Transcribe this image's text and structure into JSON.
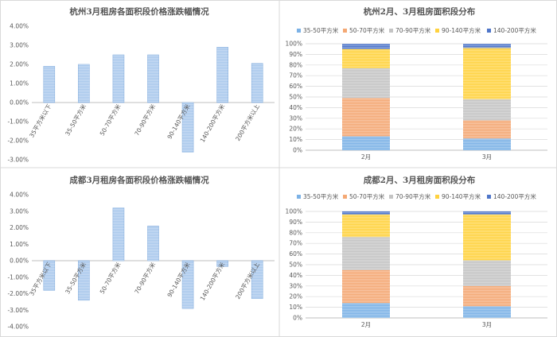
{
  "colors": {
    "bar_fill": "#a9c8ec",
    "bar_stroke": "#7ea9dc",
    "seg_35_50": "#7cb2e6",
    "seg_50_70": "#f4a874",
    "seg_70_90": "#c4c4c4",
    "seg_90_140": "#ffd23f",
    "seg_140_200": "#4f76c9",
    "grid": "#d9d9d9",
    "axis": "#bfbfbf",
    "panel_border": "#d9d9d9"
  },
  "chart_data": [
    {
      "type": "bar",
      "title": "杭州3月租房各面积段价格涨跌幅情况",
      "categories": [
        "35平方米以下",
        "35-50平方米",
        "50-70平方米",
        "70-90平方米",
        "90-140平方米",
        "140-200平方米",
        "200平方米以上"
      ],
      "values": [
        1.9,
        2.0,
        2.5,
        2.5,
        -2.6,
        2.9,
        2.05
      ],
      "ylim": [
        -3,
        4
      ],
      "yticks": [
        "4.00%",
        "3.00%",
        "2.00%",
        "1.00%",
        "0.00%",
        "-1.00%",
        "-2.00%",
        "-3.00%"
      ],
      "grid": false
    },
    {
      "type": "bar",
      "stacked": true,
      "percent": true,
      "title": "杭州2月、3月租房面积段分布",
      "categories": [
        "2月",
        "3月"
      ],
      "legend": "top",
      "series": [
        {
          "name": "35-50平方米",
          "values": [
            13,
            11
          ]
        },
        {
          "name": "50-70平方米",
          "values": [
            36,
            17
          ]
        },
        {
          "name": "70-90平方米",
          "values": [
            28,
            20
          ]
        },
        {
          "name": "90-140平方米",
          "values": [
            18,
            48
          ]
        },
        {
          "name": "140-200平方米",
          "values": [
            5,
            4
          ]
        }
      ],
      "ylim": [
        0,
        100
      ],
      "yticks": [
        "100%",
        "90%",
        "80%",
        "70%",
        "60%",
        "50%",
        "40%",
        "30%",
        "20%",
        "10%",
        "0%"
      ],
      "grid": true
    },
    {
      "type": "bar",
      "title": "成都3月租房各面积段价格涨跌幅情况",
      "categories": [
        "35平方米以下",
        "35-50平方米",
        "50-70平方米",
        "70-90平方米",
        "90-140平方米",
        "140-200平方米",
        "200平方米以上"
      ],
      "values": [
        -1.8,
        -2.4,
        3.2,
        2.1,
        -2.9,
        -0.35,
        -2.3
      ],
      "ylim": [
        -4,
        4
      ],
      "yticks": [
        "4.00%",
        "3.00%",
        "2.00%",
        "1.00%",
        "0.00%",
        "-1.00%",
        "-2.00%",
        "-3.00%",
        "-4.00%"
      ],
      "grid": false
    },
    {
      "type": "bar",
      "stacked": true,
      "percent": true,
      "title": "成都2月、3月租房面积段分布",
      "categories": [
        "2月",
        "3月"
      ],
      "legend": "top",
      "series": [
        {
          "name": "35-50平方米",
          "values": [
            14,
            11
          ]
        },
        {
          "name": "50-70平方米",
          "values": [
            31,
            19
          ]
        },
        {
          "name": "70-90平方米",
          "values": [
            31,
            24
          ]
        },
        {
          "name": "90-140平方米",
          "values": [
            21,
            43
          ]
        },
        {
          "name": "140-200平方米",
          "values": [
            3,
            3
          ]
        }
      ],
      "ylim": [
        0,
        100
      ],
      "yticks": [
        "100%",
        "90%",
        "80%",
        "70%",
        "60%",
        "50%",
        "40%",
        "30%",
        "20%",
        "10%",
        "0%"
      ],
      "grid": true
    }
  ]
}
